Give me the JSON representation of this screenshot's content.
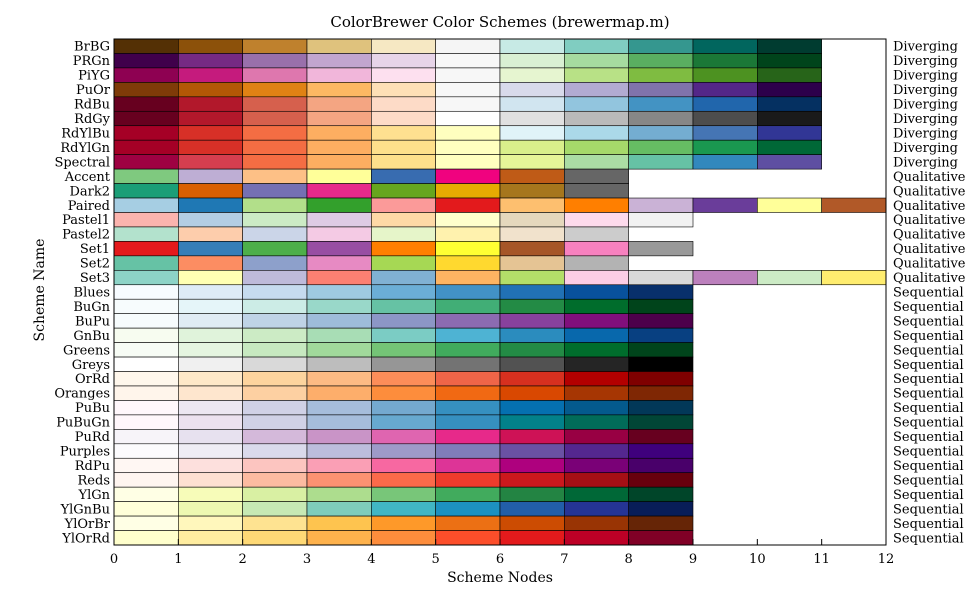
{
  "chart_data": {
    "type": "heatmap",
    "title": "ColorBrewer Color Schemes (brewermap.m)",
    "xlabel": "Scheme Nodes",
    "ylabel": "Scheme Name",
    "xlim": [
      0,
      12
    ],
    "xticks": [
      0,
      1,
      2,
      3,
      4,
      5,
      6,
      7,
      8,
      9,
      10,
      11,
      12
    ],
    "grid": false,
    "legend": "none",
    "schemes": [
      {
        "name": "BrBG",
        "type": "Diverging",
        "colors": [
          "#543005",
          "#8c510a",
          "#bf812d",
          "#dfc27d",
          "#f6e8c3",
          "#f5f5f5",
          "#c7eae5",
          "#80cdc1",
          "#35978f",
          "#01665e",
          "#003c30"
        ]
      },
      {
        "name": "PRGn",
        "type": "Diverging",
        "colors": [
          "#40004b",
          "#762a83",
          "#9970ab",
          "#c2a5cf",
          "#e7d4e8",
          "#f7f7f7",
          "#d9f0d3",
          "#a6dba0",
          "#5aae61",
          "#1b7837",
          "#00441b"
        ]
      },
      {
        "name": "PiYG",
        "type": "Diverging",
        "colors": [
          "#8e0152",
          "#c51b7d",
          "#de77ae",
          "#f1b6da",
          "#fde0ef",
          "#f7f7f7",
          "#e6f5d0",
          "#b8e186",
          "#7fbc41",
          "#4d9221",
          "#276419"
        ]
      },
      {
        "name": "PuOr",
        "type": "Diverging",
        "colors": [
          "#7f3b08",
          "#b35806",
          "#e08214",
          "#fdb863",
          "#fee0b6",
          "#f7f7f7",
          "#d8daeb",
          "#b2abd2",
          "#8073ac",
          "#542788",
          "#2d004b"
        ]
      },
      {
        "name": "RdBu",
        "type": "Diverging",
        "colors": [
          "#67001f",
          "#b2182b",
          "#d6604d",
          "#f4a582",
          "#fddbc7",
          "#f7f7f7",
          "#d1e5f0",
          "#92c5de",
          "#4393c3",
          "#2166ac",
          "#053061"
        ]
      },
      {
        "name": "RdGy",
        "type": "Diverging",
        "colors": [
          "#67001f",
          "#b2182b",
          "#d6604d",
          "#f4a582",
          "#fddbc7",
          "#ffffff",
          "#e0e0e0",
          "#bababa",
          "#878787",
          "#4d4d4d",
          "#1a1a1a"
        ]
      },
      {
        "name": "RdYlBu",
        "type": "Diverging",
        "colors": [
          "#a50026",
          "#d73027",
          "#f46d43",
          "#fdae61",
          "#fee090",
          "#ffffbf",
          "#e0f3f8",
          "#abd9e9",
          "#74add1",
          "#4575b4",
          "#313695"
        ]
      },
      {
        "name": "RdYlGn",
        "type": "Diverging",
        "colors": [
          "#a50026",
          "#d73027",
          "#f46d43",
          "#fdae61",
          "#fee08b",
          "#ffffbf",
          "#d9ef8b",
          "#a6d96a",
          "#66bd63",
          "#1a9850",
          "#006837"
        ]
      },
      {
        "name": "Spectral",
        "type": "Diverging",
        "colors": [
          "#9e0142",
          "#d53e4f",
          "#f46d43",
          "#fdae61",
          "#fee08b",
          "#ffffbf",
          "#e6f598",
          "#abdda4",
          "#66c2a5",
          "#3288bd",
          "#5e4fa2"
        ]
      },
      {
        "name": "Accent",
        "type": "Qualitative",
        "colors": [
          "#7fc97f",
          "#beaed4",
          "#fdc086",
          "#ffff99",
          "#386cb0",
          "#f0027f",
          "#bf5b17",
          "#666666"
        ]
      },
      {
        "name": "Dark2",
        "type": "Qualitative",
        "colors": [
          "#1b9e77",
          "#d95f02",
          "#7570b3",
          "#e7298a",
          "#66a61e",
          "#e6ab02",
          "#a6761d",
          "#666666"
        ]
      },
      {
        "name": "Paired",
        "type": "Qualitative",
        "colors": [
          "#a6cee3",
          "#1f78b4",
          "#b2df8a",
          "#33a02c",
          "#fb9a99",
          "#e31a1c",
          "#fdbf6f",
          "#ff7f00",
          "#cab2d6",
          "#6a3d9a",
          "#ffff99",
          "#b15928"
        ]
      },
      {
        "name": "Pastel1",
        "type": "Qualitative",
        "colors": [
          "#fbb4ae",
          "#b3cde3",
          "#ccebc5",
          "#decbe4",
          "#fed9a6",
          "#ffffcc",
          "#e5d8bd",
          "#fddaec",
          "#f2f2f2"
        ]
      },
      {
        "name": "Pastel2",
        "type": "Qualitative",
        "colors": [
          "#b3e2cd",
          "#fdcdac",
          "#cbd5e8",
          "#f4cae4",
          "#e6f5c9",
          "#fff2ae",
          "#f1e2cc",
          "#cccccc"
        ]
      },
      {
        "name": "Set1",
        "type": "Qualitative",
        "colors": [
          "#e41a1c",
          "#377eb8",
          "#4daf4a",
          "#984ea3",
          "#ff7f00",
          "#ffff33",
          "#a65628",
          "#f781bf",
          "#999999"
        ]
      },
      {
        "name": "Set2",
        "type": "Qualitative",
        "colors": [
          "#66c2a5",
          "#fc8d62",
          "#8da0cb",
          "#e78ac3",
          "#a6d854",
          "#ffd92f",
          "#e5c494",
          "#b3b3b3"
        ]
      },
      {
        "name": "Set3",
        "type": "Qualitative",
        "colors": [
          "#8dd3c7",
          "#ffffb3",
          "#bebada",
          "#fb8072",
          "#80b1d3",
          "#fdb462",
          "#b3de69",
          "#fccde5",
          "#d9d9d9",
          "#bc80bd",
          "#ccebc5",
          "#ffed6f"
        ]
      },
      {
        "name": "Blues",
        "type": "Sequential",
        "colors": [
          "#f7fbff",
          "#deebf7",
          "#c6dbef",
          "#9ecae1",
          "#6baed6",
          "#4292c6",
          "#2171b5",
          "#08519c",
          "#08306b"
        ]
      },
      {
        "name": "BuGn",
        "type": "Sequential",
        "colors": [
          "#f7fcfd",
          "#e5f5f9",
          "#ccece6",
          "#99d8c9",
          "#66c2a4",
          "#41ae76",
          "#238b45",
          "#006d2c",
          "#00441b"
        ]
      },
      {
        "name": "BuPu",
        "type": "Sequential",
        "colors": [
          "#f7fcfd",
          "#e0ecf4",
          "#bfd3e6",
          "#9ebcda",
          "#8c96c6",
          "#8c6bb1",
          "#88419d",
          "#810f7c",
          "#4d004b"
        ]
      },
      {
        "name": "GnBu",
        "type": "Sequential",
        "colors": [
          "#f7fcf0",
          "#e0f3db",
          "#ccebc5",
          "#a8ddb5",
          "#7bccc4",
          "#4eb3d3",
          "#2b8cbe",
          "#0868ac",
          "#084081"
        ]
      },
      {
        "name": "Greens",
        "type": "Sequential",
        "colors": [
          "#f7fcf5",
          "#e5f5e0",
          "#c7e9c0",
          "#a1d99b",
          "#74c476",
          "#41ab5d",
          "#238b45",
          "#006d2c",
          "#00441b"
        ]
      },
      {
        "name": "Greys",
        "type": "Sequential",
        "colors": [
          "#ffffff",
          "#f0f0f0",
          "#d9d9d9",
          "#bdbdbd",
          "#969696",
          "#737373",
          "#525252",
          "#252525",
          "#000000"
        ]
      },
      {
        "name": "OrRd",
        "type": "Sequential",
        "colors": [
          "#fff7ec",
          "#fee8c8",
          "#fdd49e",
          "#fdbb84",
          "#fc8d59",
          "#ef6548",
          "#d7301f",
          "#b30000",
          "#7f0000"
        ]
      },
      {
        "name": "Oranges",
        "type": "Sequential",
        "colors": [
          "#fff5eb",
          "#fee6ce",
          "#fdd0a2",
          "#fdae6b",
          "#fd8d3c",
          "#f16913",
          "#d94801",
          "#a63603",
          "#7f2704"
        ]
      },
      {
        "name": "PuBu",
        "type": "Sequential",
        "colors": [
          "#fff7fb",
          "#ece7f2",
          "#d0d1e6",
          "#a6bddb",
          "#74a9cf",
          "#3690c0",
          "#0570b0",
          "#045a8d",
          "#023858"
        ]
      },
      {
        "name": "PuBuGn",
        "type": "Sequential",
        "colors": [
          "#fff7fb",
          "#ece2f0",
          "#d0d1e6",
          "#a6bddb",
          "#67a9cf",
          "#3690c0",
          "#02818a",
          "#016c59",
          "#014636"
        ]
      },
      {
        "name": "PuRd",
        "type": "Sequential",
        "colors": [
          "#f7f4f9",
          "#e7e1ef",
          "#d4b9da",
          "#c994c7",
          "#df65b0",
          "#e7298a",
          "#ce1256",
          "#980043",
          "#67001f"
        ]
      },
      {
        "name": "Purples",
        "type": "Sequential",
        "colors": [
          "#fcfbfd",
          "#efedf5",
          "#dadaeb",
          "#bcbddc",
          "#9e9ac8",
          "#807dba",
          "#6a51a3",
          "#54278f",
          "#3f007d"
        ]
      },
      {
        "name": "RdPu",
        "type": "Sequential",
        "colors": [
          "#fff7f3",
          "#fde0dd",
          "#fcc5c0",
          "#fa9fb5",
          "#f768a1",
          "#dd3497",
          "#ae017e",
          "#7a0177",
          "#49006a"
        ]
      },
      {
        "name": "Reds",
        "type": "Sequential",
        "colors": [
          "#fff5f0",
          "#fee0d2",
          "#fcbba1",
          "#fc9272",
          "#fb6a4a",
          "#ef3b2c",
          "#cb181d",
          "#a50f15",
          "#67000d"
        ]
      },
      {
        "name": "YlGn",
        "type": "Sequential",
        "colors": [
          "#ffffe5",
          "#f7fcb9",
          "#d9f0a3",
          "#addd8e",
          "#78c679",
          "#41ab5d",
          "#238443",
          "#006837",
          "#004529"
        ]
      },
      {
        "name": "YlGnBu",
        "type": "Sequential",
        "colors": [
          "#ffffd9",
          "#edf8b1",
          "#c7e9b4",
          "#7fcdbb",
          "#41b6c4",
          "#1d91c0",
          "#225ea8",
          "#253494",
          "#081d58"
        ]
      },
      {
        "name": "YlOrBr",
        "type": "Sequential",
        "colors": [
          "#ffffe5",
          "#fff7bc",
          "#fee391",
          "#fec44f",
          "#fe9929",
          "#ec7014",
          "#cc4c02",
          "#993404",
          "#662506"
        ]
      },
      {
        "name": "YlOrRd",
        "type": "Sequential",
        "colors": [
          "#ffffcc",
          "#ffeda0",
          "#fed976",
          "#feb24c",
          "#fd8d3c",
          "#fc4e2a",
          "#e31a1c",
          "#bd0026",
          "#800026"
        ]
      }
    ]
  }
}
